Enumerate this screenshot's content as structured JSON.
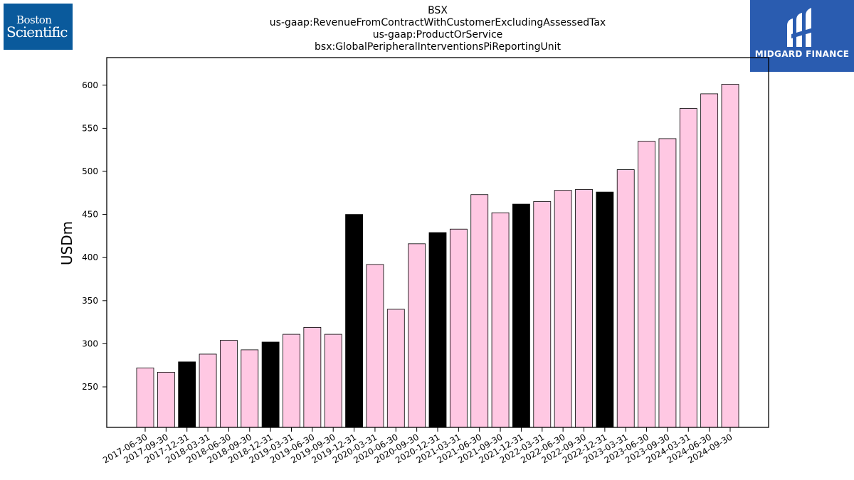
{
  "logos": {
    "left_line1": "Boston",
    "left_line2": "Scientific",
    "right_brand": "MIDGARD FINANCE"
  },
  "chart_data": {
    "type": "bar",
    "title_lines": [
      "BSX",
      "us-gaap:RevenueFromContractWithCustomerExcludingAssessedTax",
      "us-gaap:ProductOrService",
      "bsx:GlobalPeripheralInterventionsPiReportingUnit"
    ],
    "xlabel": "",
    "ylabel": "USDm",
    "ylim": [
      203,
      632
    ],
    "yticks": [
      250,
      300,
      350,
      400,
      450,
      500,
      550,
      600
    ],
    "grid": false,
    "colors": {
      "quarter": "#ffc8e3",
      "year_end": "#000000",
      "edge": "#000000"
    },
    "categories": [
      "2017-06-30",
      "2017-09-30",
      "2017-12-31",
      "2018-03-31",
      "2018-06-30",
      "2018-09-30",
      "2018-12-31",
      "2019-03-31",
      "2019-06-30",
      "2019-09-30",
      "2019-12-31",
      "2020-03-31",
      "2020-06-30",
      "2020-09-30",
      "2020-12-31",
      "2021-03-31",
      "2021-06-30",
      "2021-09-30",
      "2021-12-31",
      "2022-03-31",
      "2022-06-30",
      "2022-09-30",
      "2022-12-31",
      "2023-03-31",
      "2023-06-30",
      "2023-09-30",
      "2024-03-31",
      "2024-06-30",
      "2024-09-30"
    ],
    "values": [
      272,
      267,
      279,
      288,
      304,
      293,
      302,
      311,
      319,
      311,
      450,
      392,
      340,
      416,
      429,
      433,
      473,
      452,
      462,
      465,
      478,
      479,
      476,
      502,
      535,
      538,
      573,
      590,
      601
    ],
    "highlight": [
      false,
      false,
      true,
      false,
      false,
      false,
      true,
      false,
      false,
      false,
      true,
      false,
      false,
      false,
      true,
      false,
      false,
      false,
      true,
      false,
      false,
      false,
      true,
      false,
      false,
      false,
      false,
      false,
      false
    ]
  }
}
